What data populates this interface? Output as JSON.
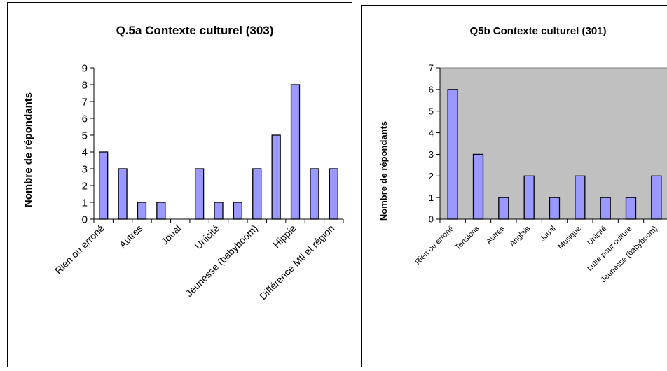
{
  "chart_data": [
    {
      "type": "bar",
      "title": "Q.5a Contexte culturel (303)",
      "ylabel": "Nombre de répondants",
      "xlabel": "",
      "ylim": [
        0,
        9
      ],
      "yticks": [
        0,
        1,
        2,
        3,
        4,
        5,
        6,
        7,
        8,
        9
      ],
      "grid": false,
      "values": [
        4,
        3,
        1,
        1,
        0,
        3,
        1,
        1,
        3,
        5,
        8,
        3,
        3
      ],
      "categories": [
        "Rien ou erroné",
        "",
        "Autres",
        "",
        "Joual",
        "",
        "Unicité",
        "",
        "Jeunesse (babyboom)",
        "",
        "Hippie",
        "",
        "Différence Mtl et région"
      ]
    },
    {
      "type": "bar",
      "title": "Q5b Contexte culturel (301)",
      "ylabel": "Nombre de répondants",
      "xlabel": "",
      "ylim": [
        0,
        7
      ],
      "yticks": [
        0,
        1,
        2,
        3,
        4,
        5,
        6,
        7
      ],
      "grid": false,
      "values": [
        6,
        3,
        1,
        2,
        1,
        2,
        1,
        1,
        2
      ],
      "categories": [
        "Rien ou erroné",
        "Tensions",
        "Autres",
        "Anglais",
        "Joual",
        "Musique",
        "Unicité",
        "Lutte pour culture",
        "Jeunesse (babyboom)"
      ]
    }
  ]
}
